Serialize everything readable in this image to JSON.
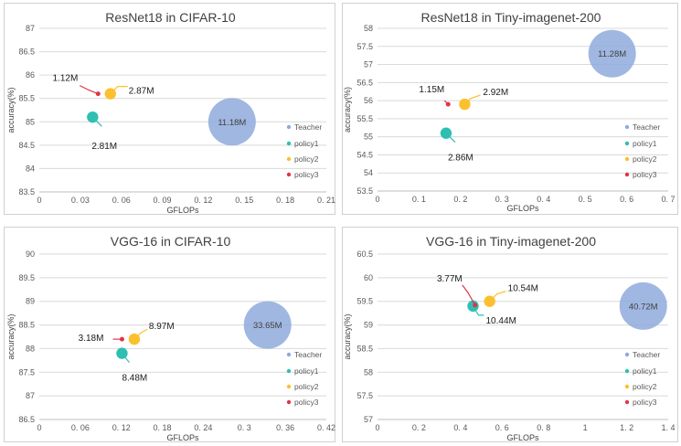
{
  "colors": {
    "teacher": "#8faadc",
    "policy1": "#2ebfb3",
    "policy2": "#fbc02d",
    "policy3": "#e0344a",
    "grid": "#d9d9d9",
    "axis": "#bfbfbf"
  },
  "chart_data": [
    {
      "type": "scatter",
      "title": "ResNet18 in CIFAR-10",
      "xlabel": "GFLOPs",
      "ylabel": "accuracy(%)",
      "xlim": [
        0,
        0.21
      ],
      "ylim": [
        83.5,
        87
      ],
      "xticks": [
        0,
        0.03,
        0.06,
        0.09,
        0.12,
        0.15,
        0.18,
        0.21
      ],
      "xtick_labels": [
        "0",
        "0. 03",
        "0. 06",
        "0. 09",
        "0. 12",
        "0. 15",
        "0. 18",
        "0. 21"
      ],
      "yticks": [
        83.5,
        84,
        84.5,
        85,
        85.5,
        86,
        86.5,
        87
      ],
      "ytick_labels": [
        "83.5",
        "84",
        "84.5",
        "85",
        "85.5",
        "86",
        "86.5",
        "87"
      ],
      "legend": [
        "Teacher",
        "policy1",
        "policy2",
        "policy3"
      ],
      "series": [
        {
          "name": "Teacher",
          "x": 0.141,
          "y": 85.0,
          "params": "11.18M",
          "size": 11.18
        },
        {
          "name": "policy1",
          "x": 0.039,
          "y": 85.1,
          "params": "2.81M",
          "size": 2.81
        },
        {
          "name": "policy2",
          "x": 0.052,
          "y": 85.6,
          "params": "2.87M",
          "size": 2.87
        },
        {
          "name": "policy3",
          "x": 0.043,
          "y": 85.6,
          "params": "1.12M",
          "size": 1.12
        }
      ]
    },
    {
      "type": "scatter",
      "title": "ResNet18 in Tiny-imagenet-200",
      "xlabel": "GFLOPs",
      "ylabel": "accuracy(%)",
      "xlim": [
        0,
        0.7
      ],
      "ylim": [
        53.5,
        58
      ],
      "xticks": [
        0,
        0.1,
        0.2,
        0.3,
        0.4,
        0.5,
        0.6,
        0.7
      ],
      "xtick_labels": [
        "0",
        "0. 1",
        "0. 2",
        "0. 3",
        "0. 4",
        "0. 5",
        "0. 6",
        "0. 7"
      ],
      "yticks": [
        53.5,
        54,
        54.5,
        55,
        55.5,
        56,
        56.5,
        57,
        57.5,
        58
      ],
      "ytick_labels": [
        "53.5",
        "54",
        "54.5",
        "55",
        "55.5",
        "56",
        "56.5",
        "57",
        "57.5",
        "58"
      ],
      "legend": [
        "Teacher",
        "policy1",
        "policy2",
        "policy3"
      ],
      "series": [
        {
          "name": "Teacher",
          "x": 0.565,
          "y": 57.3,
          "params": "11.28M",
          "size": 11.28
        },
        {
          "name": "policy1",
          "x": 0.165,
          "y": 55.1,
          "params": "2.86M",
          "size": 2.86
        },
        {
          "name": "policy2",
          "x": 0.21,
          "y": 55.9,
          "params": "2.92M",
          "size": 2.92
        },
        {
          "name": "policy3",
          "x": 0.17,
          "y": 55.9,
          "params": "1.15M",
          "size": 1.15
        }
      ]
    },
    {
      "type": "scatter",
      "title": "VGG-16 in CIFAR-10",
      "xlabel": "GFLOPs",
      "ylabel": "accuracy(%)",
      "xlim": [
        0,
        0.42
      ],
      "ylim": [
        86.5,
        90
      ],
      "xticks": [
        0,
        0.06,
        0.12,
        0.18,
        0.24,
        0.3,
        0.36,
        0.42
      ],
      "xtick_labels": [
        "0",
        "0. 06",
        "0. 12",
        "0. 18",
        "0. 24",
        "0. 3",
        "0. 36",
        "0. 42"
      ],
      "yticks": [
        86.5,
        87,
        87.5,
        88,
        88.5,
        89,
        89.5,
        90
      ],
      "ytick_labels": [
        "86.5",
        "87",
        "87.5",
        "88",
        "88.5",
        "89",
        "89.5",
        "90"
      ],
      "legend": [
        "Teacher",
        "policy1",
        "policy2",
        "policy3"
      ],
      "series": [
        {
          "name": "Teacher",
          "x": 0.334,
          "y": 88.5,
          "params": "33.65M",
          "size": 33.65
        },
        {
          "name": "policy1",
          "x": 0.121,
          "y": 87.9,
          "params": "8.48M",
          "size": 8.48
        },
        {
          "name": "policy2",
          "x": 0.139,
          "y": 88.2,
          "params": "8.97M",
          "size": 8.97
        },
        {
          "name": "policy3",
          "x": 0.121,
          "y": 88.2,
          "params": "3.18M",
          "size": 3.18
        }
      ]
    },
    {
      "type": "scatter",
      "title": "VGG-16 in Tiny-imagenet-200",
      "xlabel": "GFLOPs",
      "ylabel": "accuracy(%)",
      "xlim": [
        0,
        1.4
      ],
      "ylim": [
        57,
        60.5
      ],
      "xticks": [
        0,
        0.2,
        0.4,
        0.6,
        0.8,
        1,
        1.2,
        1.4
      ],
      "xtick_labels": [
        "0",
        "0. 2",
        "0. 4",
        "0. 6",
        "0. 8",
        "1",
        "1. 2",
        "1. 4"
      ],
      "yticks": [
        57,
        57.5,
        58,
        58.5,
        59,
        59.5,
        60,
        60.5
      ],
      "ytick_labels": [
        "57",
        "57.5",
        "58",
        "58.5",
        "59",
        "59.5",
        "60",
        "60.5"
      ],
      "legend": [
        "Teacher",
        "policy1",
        "policy2",
        "policy3"
      ],
      "series": [
        {
          "name": "Teacher",
          "x": 1.28,
          "y": 59.4,
          "params": "40.72M",
          "size": 40.72
        },
        {
          "name": "policy1",
          "x": 0.46,
          "y": 59.4,
          "params": "10.44M",
          "size": 10.44
        },
        {
          "name": "policy2",
          "x": 0.54,
          "y": 59.5,
          "params": "10.54M",
          "size": 10.54
        },
        {
          "name": "policy3",
          "x": 0.47,
          "y": 59.42,
          "params": "3.77M",
          "size": 3.77
        }
      ]
    }
  ]
}
